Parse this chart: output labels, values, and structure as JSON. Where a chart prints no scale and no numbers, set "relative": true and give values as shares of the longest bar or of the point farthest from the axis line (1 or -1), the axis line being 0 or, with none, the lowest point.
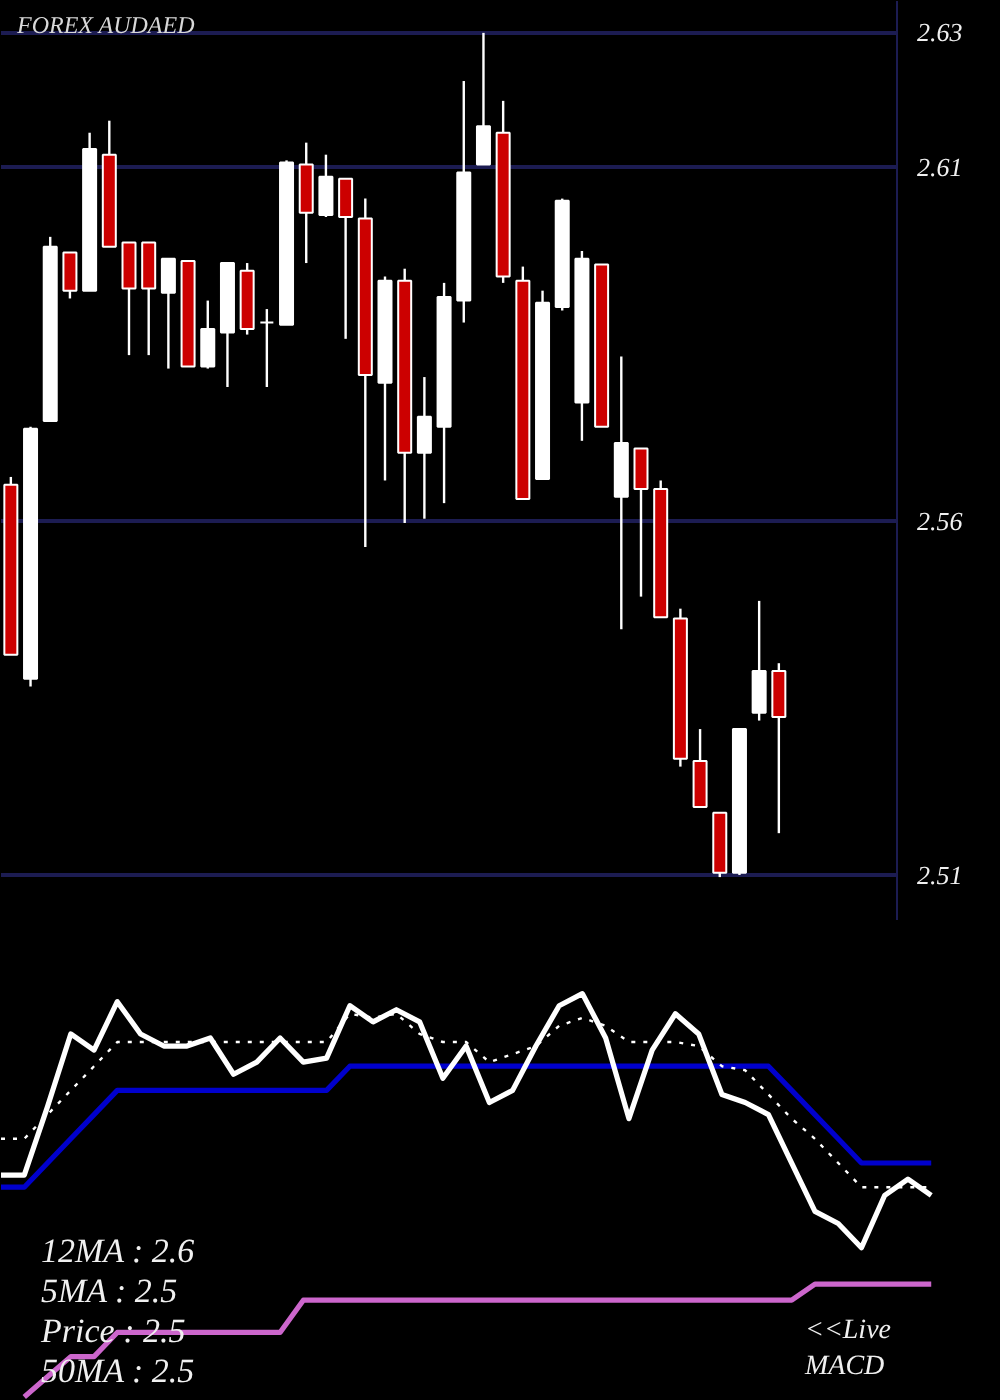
{
  "chart_data": [
    {
      "type": "candlestick",
      "title": "FOREX AUDAED",
      "tick_labels": "y",
      "grid": "y",
      "categories": [
        null,
        null,
        null,
        null,
        null,
        null,
        null,
        null,
        null,
        null,
        null,
        null,
        null,
        null,
        null,
        null,
        null,
        null,
        null,
        null,
        null,
        null,
        null,
        null,
        null,
        null,
        null,
        null,
        null,
        null,
        null,
        null,
        null,
        null,
        null,
        null,
        null,
        null,
        null,
        null
      ],
      "ohlc": [
        [
          2.5651,
          2.5662,
          2.5411,
          2.5411
        ],
        [
          2.5377,
          2.5733,
          2.5366,
          2.573
        ],
        [
          2.5741,
          2.6001,
          2.5741,
          2.5987
        ],
        [
          2.5979,
          2.5979,
          2.5914,
          2.5925
        ],
        [
          2.5925,
          2.6148,
          2.5925,
          2.6125
        ],
        [
          2.6117,
          2.6165,
          2.5987,
          2.5987
        ],
        [
          2.5993,
          2.5993,
          2.5834,
          2.5928
        ],
        [
          2.5993,
          2.5993,
          2.5834,
          2.5928
        ],
        [
          2.5922,
          2.597,
          2.5815,
          2.597
        ],
        [
          2.5967,
          2.5967,
          2.5818,
          2.5818
        ],
        [
          2.5818,
          2.5911,
          2.5815,
          2.5871
        ],
        [
          2.5866,
          2.5964,
          2.5789,
          2.5964
        ],
        [
          2.5953,
          2.5964,
          2.5863,
          2.5871
        ],
        [
          2.588,
          2.5899,
          2.5789,
          2.588
        ],
        [
          2.5877,
          2.6109,
          2.5877,
          2.6106
        ],
        [
          2.6103,
          2.6134,
          2.5964,
          2.6035
        ],
        [
          2.6032,
          2.6117,
          2.6029,
          2.6086
        ],
        [
          2.6083,
          2.6083,
          2.5857,
          2.6029
        ],
        [
          2.6027,
          2.6055,
          2.5563,
          2.5806
        ],
        [
          2.5795,
          2.5945,
          2.5657,
          2.5939
        ],
        [
          2.5939,
          2.5956,
          2.5597,
          2.5696
        ],
        [
          2.5696,
          2.5803,
          2.5603,
          2.5747
        ],
        [
          2.5733,
          2.5936,
          2.5625,
          2.5916
        ],
        [
          2.5911,
          2.6221,
          2.588,
          2.6092
        ],
        [
          2.6103,
          2.6289,
          2.6103,
          2.6157
        ],
        [
          2.6148,
          2.6193,
          2.5936,
          2.5945
        ],
        [
          2.5939,
          2.5959,
          2.5631,
          2.5631
        ],
        [
          2.5659,
          2.5925,
          2.5659,
          2.5908
        ],
        [
          2.5902,
          2.6055,
          2.5897,
          2.6052
        ],
        [
          2.5767,
          2.5981,
          2.5713,
          2.597
        ],
        [
          2.5962,
          2.5962,
          2.5733,
          2.5733
        ],
        [
          2.5634,
          2.5832,
          2.5447,
          2.571
        ],
        [
          2.5702,
          2.5702,
          2.5493,
          2.5645
        ],
        [
          2.5645,
          2.5657,
          2.5464,
          2.5464
        ],
        [
          2.5462,
          2.5476,
          2.5253,
          2.5264
        ],
        [
          2.5261,
          2.5306,
          2.5196,
          2.5196
        ],
        [
          2.5188,
          2.5188,
          2.5097,
          2.5103
        ],
        [
          2.5103,
          2.5306,
          2.51,
          2.5306
        ],
        [
          2.5329,
          2.5487,
          2.5318,
          2.5388
        ],
        [
          2.5388,
          2.5399,
          2.5159,
          2.5323
        ]
      ],
      "ylim": [
        2.5035,
        2.6334
      ],
      "yticks": [
        2.51,
        2.56,
        2.61,
        {
          "value": 2.629,
          "label": "2.63"
        }
      ]
    },
    {
      "type": "line",
      "relative": true,
      "categories": [
        null,
        null,
        null,
        null,
        null,
        null,
        null,
        null,
        null,
        null,
        null,
        null,
        null,
        null,
        null,
        null,
        null,
        null,
        null,
        null,
        null,
        null,
        null,
        null,
        null,
        null,
        null,
        null,
        null,
        null,
        null,
        null,
        null,
        null,
        null,
        null,
        null,
        null,
        null,
        null,
        null
      ],
      "series": [
        {
          "color": "#cc66cc",
          "values": [
            null,
            0.0,
            0.05,
            0.1,
            0.1,
            0.16,
            0.16,
            0.16,
            0.16,
            0.16,
            0.16,
            0.16,
            0.16,
            0.24,
            0.24,
            0.24,
            0.24,
            0.24,
            0.24,
            0.24,
            0.24,
            0.24,
            0.24,
            0.24,
            0.24,
            0.24,
            0.24,
            0.24,
            0.24,
            0.24,
            0.24,
            0.24,
            0.24,
            0.24,
            0.24,
            0.28,
            0.28,
            0.28,
            0.28,
            0.28,
            0.28
          ]
        },
        {
          "color": "#0000cc",
          "values": [
            0.52,
            0.52,
            0.58,
            0.64,
            0.7,
            0.76,
            0.76,
            0.76,
            0.76,
            0.76,
            0.76,
            0.76,
            0.76,
            0.76,
            0.76,
            0.82,
            0.82,
            0.82,
            0.82,
            0.82,
            0.82,
            0.82,
            0.82,
            0.82,
            0.82,
            0.82,
            0.82,
            0.82,
            0.82,
            0.82,
            0.82,
            0.82,
            0.82,
            0.82,
            0.76,
            0.7,
            0.64,
            0.58,
            0.58,
            0.58,
            0.58
          ]
        },
        {
          "color": "#ffffff",
          "line_style": "dotted",
          "values": [
            0.64,
            0.64,
            0.7,
            0.76,
            0.82,
            0.88,
            0.88,
            0.88,
            0.88,
            0.88,
            0.88,
            0.88,
            0.88,
            0.88,
            0.88,
            0.95,
            0.94,
            0.95,
            0.9,
            0.88,
            0.88,
            0.83,
            0.85,
            0.87,
            0.92,
            0.94,
            0.92,
            0.88,
            0.88,
            0.88,
            0.87,
            0.82,
            0.81,
            0.75,
            0.69,
            0.64,
            0.58,
            0.52,
            0.52,
            0.52,
            0.52
          ]
        },
        {
          "color": "#ffffff",
          "values": [
            0.55,
            0.55,
            0.72,
            0.9,
            0.86,
            0.98,
            0.9,
            0.87,
            0.87,
            0.89,
            0.8,
            0.83,
            0.89,
            0.83,
            0.84,
            0.97,
            0.93,
            0.96,
            0.93,
            0.79,
            0.87,
            0.73,
            0.76,
            0.87,
            0.97,
            1.0,
            0.89,
            0.69,
            0.86,
            0.95,
            0.9,
            0.75,
            0.73,
            0.7,
            0.58,
            0.46,
            0.43,
            0.37,
            0.5,
            0.54,
            0.5
          ]
        }
      ],
      "annotations": [
        "12MA : 2.6",
        "5MA : 2.5",
        "Price : 2.5",
        "50MA : 2.5",
        "<<Live\nMACD"
      ]
    }
  ]
}
